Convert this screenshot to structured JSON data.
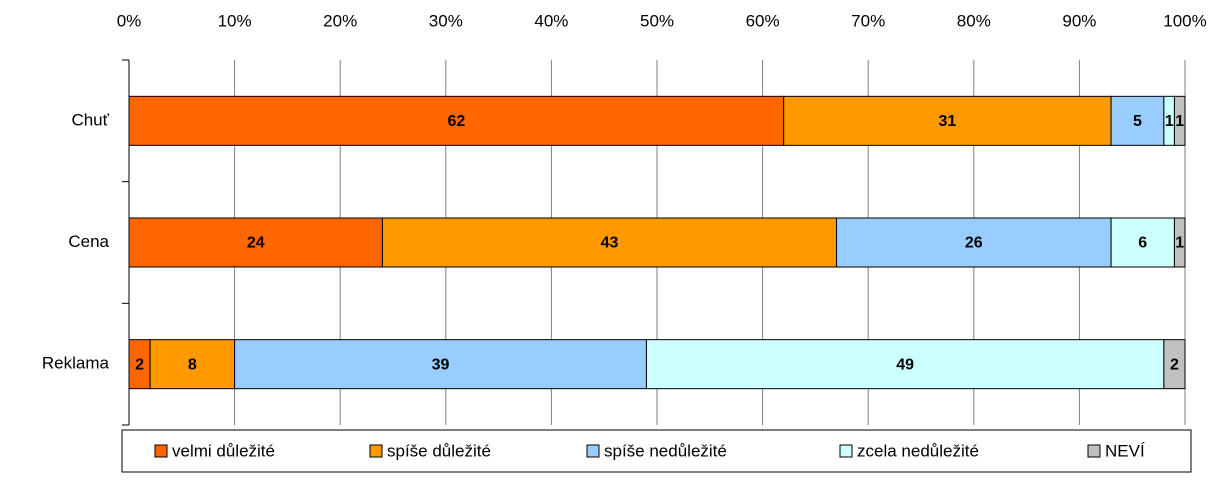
{
  "chart_data": {
    "type": "bar",
    "orientation": "horizontal",
    "stacked": true,
    "categories": [
      "Chuť",
      "Cena",
      "Reklama"
    ],
    "series": [
      {
        "name": "velmi důležité",
        "color": "#ff6600",
        "values": [
          62,
          24,
          2
        ]
      },
      {
        "name": "spíše důležité",
        "color": "#ff9900",
        "values": [
          31,
          43,
          8
        ]
      },
      {
        "name": "spíše nedůležité",
        "color": "#99ccff",
        "values": [
          5,
          26,
          39
        ]
      },
      {
        "name": "zcela nedůležité",
        "color": "#ccffff",
        "values": [
          1,
          6,
          49
        ]
      },
      {
        "name": "NEVÍ",
        "color": "#c0c0c0",
        "values": [
          1,
          1,
          2
        ]
      }
    ],
    "xlim": [
      0,
      100
    ],
    "xticks": [
      {
        "value": 0,
        "label": "0%"
      },
      {
        "value": 10,
        "label": "10%"
      },
      {
        "value": 20,
        "label": "20%"
      },
      {
        "value": 30,
        "label": "30%"
      },
      {
        "value": 40,
        "label": "40%"
      },
      {
        "value": 50,
        "label": "50%"
      },
      {
        "value": 60,
        "label": "60%"
      },
      {
        "value": 70,
        "label": "70%"
      },
      {
        "value": 80,
        "label": "80%"
      },
      {
        "value": 90,
        "label": "90%"
      },
      {
        "value": 100,
        "label": "100%"
      }
    ],
    "grid": true,
    "legend": "bottom"
  }
}
